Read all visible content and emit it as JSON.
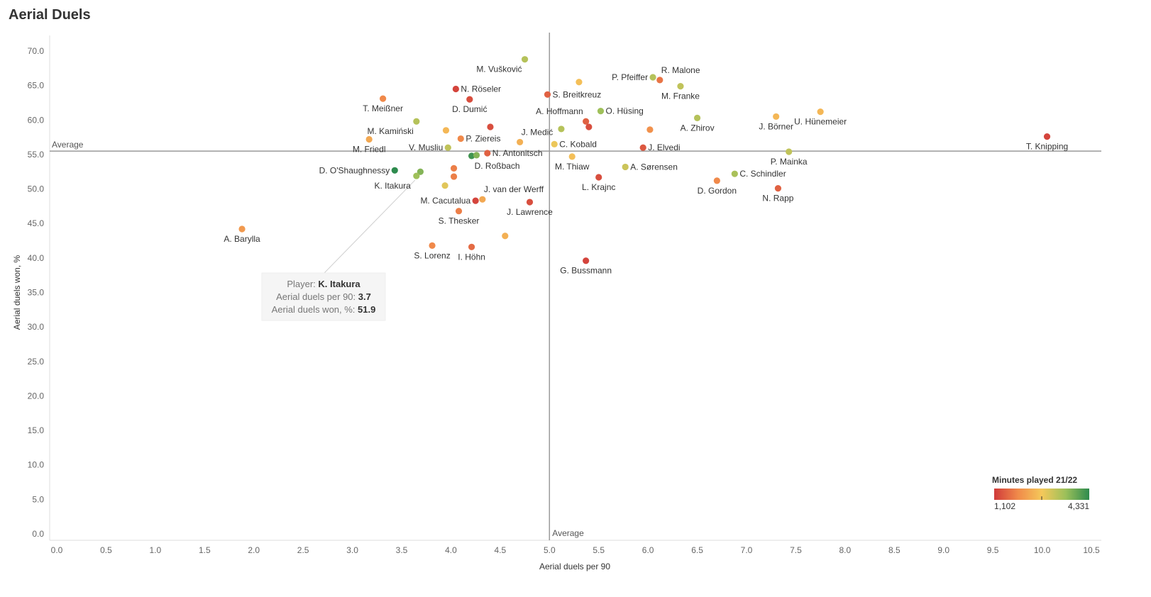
{
  "page_title": "Aerial Duels",
  "chart_data": {
    "type": "scatter",
    "title": "Aerial Duels",
    "xlabel": "Aerial duels per 90",
    "ylabel": "Aerial duels won, %",
    "xlim": [
      0,
      10.5
    ],
    "ylim": [
      0,
      70
    ],
    "x_ticks": [
      "0.0",
      "0.5",
      "1.0",
      "1.5",
      "2.0",
      "2.5",
      "3.0",
      "3.5",
      "4.0",
      "4.5",
      "5.0",
      "5.5",
      "6.0",
      "6.5",
      "7.0",
      "7.5",
      "8.0",
      "8.5",
      "9.0",
      "9.5",
      "10.0",
      "10.5"
    ],
    "y_ticks": [
      "0.0",
      "5.0",
      "10.0",
      "15.0",
      "20.0",
      "25.0",
      "30.0",
      "35.0",
      "40.0",
      "45.0",
      "50.0",
      "55.0",
      "60.0",
      "65.0",
      "70.0"
    ],
    "reference_lines": {
      "x_average": 5.0,
      "y_average": 55.5,
      "label": "Average"
    },
    "color_legend": {
      "title": "Minutes played 21/22",
      "min_label": "1,102",
      "max_label": "4,331",
      "min": 1102,
      "max": 4331,
      "colors": [
        "#d03a3a",
        "#f08a4a",
        "#f5c85a",
        "#9cc05a",
        "#2e8b4e"
      ]
    },
    "points": [
      {
        "x": 4.75,
        "y": 68.8,
        "minutes": 3300,
        "label": "M. Vušković",
        "lpos": "bl"
      },
      {
        "x": 5.3,
        "y": 65.5,
        "minutes": 2600,
        "label": "",
        "lpos": "none"
      },
      {
        "x": 6.05,
        "y": 66.2,
        "minutes": 3300,
        "label": "P. Pfeiffer",
        "lpos": "l"
      },
      {
        "x": 6.12,
        "y": 65.8,
        "minutes": 1700,
        "label": "R. Malone",
        "lpos": "tr"
      },
      {
        "x": 6.33,
        "y": 64.9,
        "minutes": 3200,
        "label": "M. Franke",
        "lpos": "b"
      },
      {
        "x": 4.05,
        "y": 64.5,
        "minutes": 1200,
        "label": "N. Röseler",
        "lpos": "r"
      },
      {
        "x": 4.19,
        "y": 63.0,
        "minutes": 1300,
        "label": "D. Dumić",
        "lpos": "b"
      },
      {
        "x": 3.31,
        "y": 63.1,
        "minutes": 1900,
        "label": "T.  Meißner",
        "lpos": "b"
      },
      {
        "x": 4.98,
        "y": 63.7,
        "minutes": 1500,
        "label": "S. Breitkreuz",
        "lpos": "r"
      },
      {
        "x": 5.52,
        "y": 61.3,
        "minutes": 3500,
        "label": "O. Hüsing",
        "lpos": "r"
      },
      {
        "x": 5.37,
        "y": 59.8,
        "minutes": 1500,
        "label": "A. Hoffmann",
        "lpos": "tl"
      },
      {
        "x": 5.4,
        "y": 59.0,
        "minutes": 1300,
        "label": "",
        "lpos": "none"
      },
      {
        "x": 6.5,
        "y": 60.3,
        "minutes": 3300,
        "label": "A. Zhirov",
        "lpos": "b"
      },
      {
        "x": 7.3,
        "y": 60.5,
        "minutes": 2500,
        "label": "J. Börner",
        "lpos": "b"
      },
      {
        "x": 7.75,
        "y": 61.2,
        "minutes": 2500,
        "label": "U. Hünemeier",
        "lpos": "b"
      },
      {
        "x": 10.05,
        "y": 57.6,
        "minutes": 1200,
        "label": "T. Knipping",
        "lpos": "b"
      },
      {
        "x": 3.65,
        "y": 59.8,
        "minutes": 3300,
        "label": "M. Kamiński",
        "lpos": "bl"
      },
      {
        "x": 3.95,
        "y": 58.5,
        "minutes": 2500,
        "label": "",
        "lpos": "none"
      },
      {
        "x": 4.4,
        "y": 59.0,
        "minutes": 1300,
        "label": "",
        "lpos": "none"
      },
      {
        "x": 4.1,
        "y": 57.3,
        "minutes": 1900,
        "label": "P. Ziereis",
        "lpos": "r"
      },
      {
        "x": 4.7,
        "y": 56.8,
        "minutes": 2400,
        "label": "J. Medić",
        "lpos": "tr"
      },
      {
        "x": 5.12,
        "y": 58.7,
        "minutes": 3300,
        "label": "",
        "lpos": "none"
      },
      {
        "x": 6.02,
        "y": 58.6,
        "minutes": 2000,
        "label": "",
        "lpos": "none"
      },
      {
        "x": 5.05,
        "y": 56.5,
        "minutes": 2800,
        "label": "C. Kobald",
        "lpos": "r"
      },
      {
        "x": 5.95,
        "y": 56.0,
        "minutes": 1400,
        "label": "J. Elvedi",
        "lpos": "r"
      },
      {
        "x": 3.17,
        "y": 57.2,
        "minutes": 2300,
        "label": "M. Friedl",
        "lpos": "b"
      },
      {
        "x": 3.97,
        "y": 56.0,
        "minutes": 3200,
        "label": "V. Musliu",
        "lpos": "l"
      },
      {
        "x": 4.37,
        "y": 55.2,
        "minutes": 1500,
        "label": "N. Antonitsch",
        "lpos": "r"
      },
      {
        "x": 4.21,
        "y": 54.8,
        "minutes": 4200,
        "label": "D. Roßbach",
        "lpos": "br"
      },
      {
        "x": 4.26,
        "y": 54.9,
        "minutes": 3700,
        "label": "",
        "lpos": "none"
      },
      {
        "x": 5.23,
        "y": 54.7,
        "minutes": 2600,
        "label": "M. Thiaw",
        "lpos": "b"
      },
      {
        "x": 7.43,
        "y": 55.4,
        "minutes": 3200,
        "label": "P. Mainka",
        "lpos": "b"
      },
      {
        "x": 5.77,
        "y": 53.2,
        "minutes": 3100,
        "label": "A. Sørensen",
        "lpos": "r"
      },
      {
        "x": 3.43,
        "y": 52.7,
        "minutes": 4331,
        "label": "D. O'Shaughnessy",
        "lpos": "l"
      },
      {
        "x": 3.69,
        "y": 52.5,
        "minutes": 3700,
        "label": "",
        "lpos": "none"
      },
      {
        "x": 3.65,
        "y": 51.9,
        "minutes": 3500,
        "label": "K. Itakura",
        "lpos": "none"
      },
      {
        "x": 4.03,
        "y": 53.0,
        "minutes": 1800,
        "label": "",
        "lpos": "none"
      },
      {
        "x": 4.03,
        "y": 51.8,
        "minutes": 1800,
        "label": "",
        "lpos": "none"
      },
      {
        "x": 5.5,
        "y": 51.7,
        "minutes": 1300,
        "label": "L. Krajnc",
        "lpos": "b"
      },
      {
        "x": 6.88,
        "y": 52.2,
        "minutes": 3400,
        "label": "C. Schindler",
        "lpos": "r"
      },
      {
        "x": 6.7,
        "y": 51.2,
        "minutes": 1900,
        "label": "D. Gordon",
        "lpos": "b"
      },
      {
        "x": 7.32,
        "y": 50.1,
        "minutes": 1500,
        "label": "N. Rapp",
        "lpos": "b"
      },
      {
        "x": 3.94,
        "y": 50.5,
        "minutes": 2900,
        "label": "",
        "lpos": "none"
      },
      {
        "x": 4.25,
        "y": 48.3,
        "minutes": 1200,
        "label": "M. Cacutalua",
        "lpos": "l"
      },
      {
        "x": 4.32,
        "y": 48.5,
        "minutes": 2300,
        "label": "J. van der Werff",
        "lpos": "tr"
      },
      {
        "x": 4.8,
        "y": 48.1,
        "minutes": 1300,
        "label": "J. Lawrence",
        "lpos": "b"
      },
      {
        "x": 4.08,
        "y": 46.8,
        "minutes": 1800,
        "label": "S. Thesker",
        "lpos": "b"
      },
      {
        "x": 1.88,
        "y": 44.2,
        "minutes": 2100,
        "label": "A. Barylla",
        "lpos": "b"
      },
      {
        "x": 4.55,
        "y": 43.2,
        "minutes": 2400,
        "label": "",
        "lpos": "none"
      },
      {
        "x": 3.81,
        "y": 41.8,
        "minutes": 1900,
        "label": "S. Lorenz",
        "lpos": "b"
      },
      {
        "x": 4.21,
        "y": 41.6,
        "minutes": 1600,
        "label": "I. Höhn",
        "lpos": "b"
      },
      {
        "x": 5.37,
        "y": 39.6,
        "minutes": 1200,
        "label": "G. Bussmann",
        "lpos": "b"
      }
    ],
    "tooltip": {
      "player_label": "Player:",
      "player": "K. Itakura",
      "x_label": "Aerial duels per 90:",
      "x_value": "3.7",
      "y_label": "Aerial duels won, %:",
      "y_value": "51.9",
      "point_index": 35
    }
  }
}
